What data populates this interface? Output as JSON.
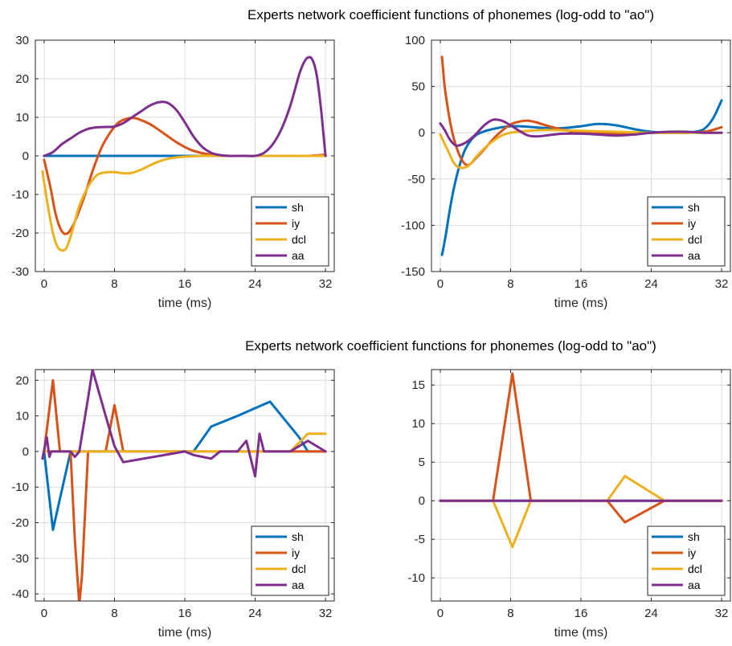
{
  "titles": [
    "Experts network coefficient functions of phonemes (log-odd to \"ao\")",
    "Experts network coefficient functions for phonemes (log-odd to \"ao\")"
  ],
  "colors": {
    "sh": "#0072BD",
    "iy": "#D95319",
    "dcl": "#EDB120",
    "aa": "#7E2F8E"
  },
  "chart_data": [
    {
      "type": "line",
      "xlabel": "time (ms)",
      "ylabel": "",
      "xlim": [
        -1,
        33
      ],
      "ylim": [
        -30,
        30
      ],
      "xticks": [
        0,
        8,
        16,
        24,
        32
      ],
      "yticks": [
        -30,
        -20,
        -10,
        0,
        10,
        20,
        30
      ],
      "grid": true,
      "legend": "bottom-right",
      "smooth": true,
      "series": [
        {
          "name": "sh",
          "x": [
            0,
            4,
            8,
            12,
            16,
            20,
            24,
            28,
            32
          ],
          "y": [
            0,
            0,
            0,
            0,
            0,
            0,
            0,
            0,
            0
          ]
        },
        {
          "name": "iy",
          "x": [
            0,
            0.7,
            1.3,
            2,
            2.7,
            3.5,
            4.5,
            5.5,
            6.5,
            7.5,
            8.5,
            9.5,
            10.3,
            11,
            12,
            13,
            14,
            15,
            16,
            17,
            18,
            19,
            20,
            21,
            22,
            24,
            26,
            28,
            30,
            32
          ],
          "y": [
            -1,
            -8,
            -15,
            -19.5,
            -20,
            -17,
            -11,
            -4,
            2,
            6,
            8.7,
            9.7,
            9.8,
            9.3,
            8.3,
            6.8,
            5.2,
            3.6,
            2.3,
            1.3,
            0.7,
            0.3,
            0.1,
            0,
            0,
            0,
            0,
            0,
            0,
            0.3
          ]
        },
        {
          "name": "dcl",
          "x": [
            -0.2,
            0.5,
            1,
            1.5,
            2,
            2.5,
            3,
            3.5,
            4,
            5,
            6,
            7,
            8,
            9,
            10,
            11,
            12,
            13,
            14,
            15,
            16,
            18,
            20,
            24,
            28,
            32
          ],
          "y": [
            -4,
            -14,
            -20,
            -23.5,
            -24.5,
            -24,
            -21,
            -17,
            -13,
            -8,
            -5,
            -4.3,
            -4.2,
            -4.5,
            -4.4,
            -3.6,
            -2.5,
            -1.5,
            -0.8,
            -0.4,
            -0.2,
            0,
            0,
            0,
            0,
            0
          ]
        },
        {
          "name": "aa",
          "x": [
            0,
            1,
            2,
            3,
            4,
            5,
            6,
            7,
            8,
            9,
            10,
            11,
            12,
            13,
            14,
            15,
            16,
            17,
            18,
            19,
            20,
            21,
            22,
            23,
            24,
            25,
            26,
            27,
            28,
            29,
            29.5,
            30,
            30.5,
            31,
            31.5,
            32
          ],
          "y": [
            0,
            1,
            3,
            4.5,
            6,
            7,
            7.4,
            7.5,
            7.6,
            8.5,
            10,
            11.5,
            13,
            13.9,
            13.8,
            12,
            8.7,
            5,
            2.3,
            0.8,
            0.2,
            0,
            0,
            0,
            0,
            0.8,
            3,
            7,
            13,
            21,
            24,
            25.5,
            25,
            21,
            12,
            0
          ]
        }
      ]
    },
    {
      "type": "line",
      "xlabel": "time (ms)",
      "ylabel": "",
      "xlim": [
        -1,
        33
      ],
      "ylim": [
        -150,
        100
      ],
      "xticks": [
        0,
        8,
        16,
        24,
        32
      ],
      "yticks": [
        -150,
        -100,
        -50,
        0,
        50,
        100
      ],
      "grid": true,
      "legend": "bottom-right",
      "smooth": true,
      "series": [
        {
          "name": "sh",
          "x": [
            0.2,
            0.6,
            1,
            1.5,
            2,
            2.5,
            3,
            3.5,
            4,
            5,
            6,
            7,
            8,
            9,
            10,
            12,
            14,
            16,
            18,
            20,
            22,
            24,
            26,
            28,
            29,
            30,
            31,
            32
          ],
          "y": [
            -132,
            -112,
            -88,
            -62,
            -42,
            -26,
            -15,
            -8,
            -3,
            1.5,
            4,
            6,
            7,
            7,
            6.5,
            5,
            5,
            7,
            9.5,
            8,
            4,
            1,
            0,
            0,
            1,
            4,
            15,
            35
          ]
        },
        {
          "name": "iy",
          "x": [
            0.2,
            0.5,
            1,
            1.5,
            2,
            2.5,
            3,
            3.5,
            4,
            5,
            6,
            7,
            8,
            9,
            10,
            11,
            12,
            14,
            16,
            20,
            24,
            28,
            30,
            31,
            32
          ],
          "y": [
            82,
            50,
            18,
            -5,
            -20,
            -30,
            -35,
            -33,
            -28,
            -18,
            -7,
            2,
            9,
            12,
            13,
            11,
            8,
            3,
            0,
            -1,
            0,
            0,
            1,
            3,
            6
          ]
        },
        {
          "name": "dcl",
          "x": [
            0,
            0.5,
            1,
            1.5,
            2,
            2.5,
            3,
            3.5,
            4,
            5,
            6,
            7,
            8,
            10,
            12,
            16,
            20,
            24,
            28,
            32
          ],
          "y": [
            -2,
            -12,
            -22,
            -32,
            -37,
            -38,
            -37,
            -33,
            -27,
            -17,
            -9,
            -3,
            0,
            2,
            3,
            2,
            1,
            0,
            0,
            0
          ]
        },
        {
          "name": "aa",
          "x": [
            0,
            0.5,
            1,
            1.5,
            2,
            3,
            4,
            5,
            6,
            7,
            8,
            9,
            10,
            11,
            12,
            14,
            16,
            18,
            20,
            22,
            24,
            26,
            28,
            30,
            31,
            32
          ],
          "y": [
            10,
            3,
            -6,
            -12,
            -14,
            -10,
            -2,
            8,
            14,
            13,
            8,
            2,
            -3,
            -4,
            -3,
            -1,
            -1,
            -2,
            -3,
            -2,
            0,
            1,
            1,
            0,
            0,
            0
          ]
        }
      ]
    },
    {
      "type": "line",
      "xlabel": "time (ms)",
      "ylabel": "",
      "xlim": [
        -1,
        33
      ],
      "ylim": [
        -42,
        23
      ],
      "xticks": [
        0,
        8,
        16,
        24,
        32
      ],
      "yticks": [
        -40,
        -30,
        -20,
        -10,
        0,
        10,
        20
      ],
      "grid": true,
      "legend": "bottom-right",
      "smooth": false,
      "series": [
        {
          "name": "sh",
          "x": [
            0,
            1,
            3,
            16,
            17,
            19,
            22,
            25.7,
            29,
            30,
            32
          ],
          "y": [
            0,
            -22,
            0,
            0,
            0,
            7,
            10,
            14,
            4,
            0,
            0
          ]
        },
        {
          "name": "iy",
          "x": [
            0,
            1,
            1.8,
            2.5,
            3,
            3.5,
            4,
            4.3,
            5,
            6,
            7,
            8,
            9,
            10,
            16,
            24,
            32
          ],
          "y": [
            0,
            20,
            0,
            0,
            0,
            -25,
            -43,
            -35,
            0,
            0,
            0,
            13,
            0,
            0,
            0,
            0,
            0
          ]
        },
        {
          "name": "dcl",
          "x": [
            0,
            8,
            16,
            24,
            28,
            30,
            32
          ],
          "y": [
            0,
            0,
            0,
            0,
            0,
            5,
            5
          ]
        },
        {
          "name": "aa",
          "x": [
            -0.2,
            0.3,
            0.6,
            0.8,
            1,
            2,
            3,
            3.5,
            4,
            5,
            5.5,
            7,
            8,
            9,
            16,
            17,
            19,
            20,
            22,
            23,
            24,
            24.5,
            25,
            26,
            28,
            30,
            32
          ],
          "y": [
            -2,
            4,
            -1.5,
            0,
            0,
            0,
            0,
            -1.5,
            0,
            15,
            23,
            10,
            1.5,
            -3,
            0,
            -1,
            -2,
            0,
            0,
            3,
            -7,
            5,
            0,
            0,
            0,
            3,
            0
          ]
        }
      ]
    },
    {
      "type": "line",
      "xlabel": "time (ms)",
      "ylabel": "",
      "xlim": [
        -1,
        33
      ],
      "ylim": [
        -13,
        17
      ],
      "xticks": [
        0,
        8,
        16,
        24,
        32
      ],
      "yticks": [
        -10,
        -5,
        0,
        5,
        10,
        15
      ],
      "grid": true,
      "legend": "bottom-right",
      "smooth": false,
      "series": [
        {
          "name": "sh",
          "x": [
            0,
            32
          ],
          "y": [
            0,
            0
          ]
        },
        {
          "name": "iy",
          "x": [
            0,
            6,
            8.2,
            10.3,
            19,
            21,
            25.5,
            32
          ],
          "y": [
            0,
            0,
            16.5,
            0,
            0,
            -2.8,
            0,
            0
          ]
        },
        {
          "name": "dcl",
          "x": [
            0,
            6,
            8.2,
            10.3,
            19,
            21,
            25.5,
            32
          ],
          "y": [
            0,
            0,
            -6,
            0,
            0,
            3.2,
            0,
            0
          ]
        },
        {
          "name": "aa",
          "x": [
            0,
            32
          ],
          "y": [
            0,
            0
          ]
        }
      ]
    }
  ]
}
